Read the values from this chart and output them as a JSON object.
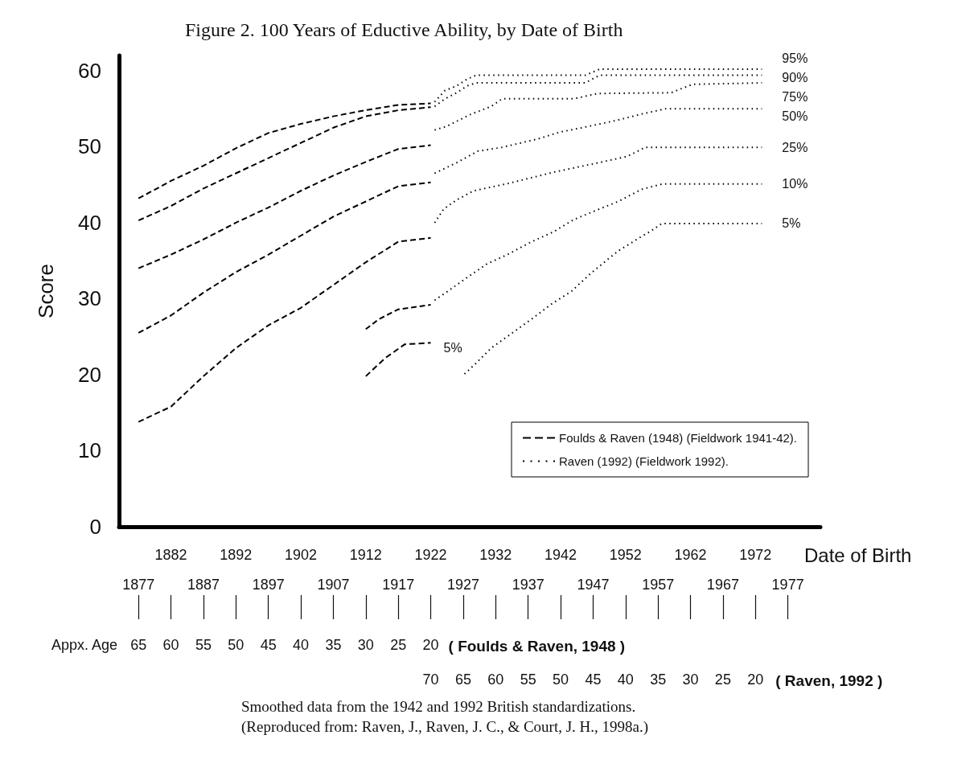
{
  "chart_data": {
    "type": "line",
    "title": "Figure 2. 100 Years of Eductive Ability, by Date of Birth",
    "xlabel": "Date of Birth",
    "ylabel": "Score",
    "xlim": [
      1874,
      1982
    ],
    "xticks": [
      1882,
      1892,
      1902,
      1912,
      1922,
      1932,
      1942,
      1952,
      1962,
      1972
    ],
    "x2lim": [
      1874,
      1982
    ],
    "x2ticks": [
      1877,
      1887,
      1897,
      1907,
      1917,
      1927,
      1937,
      1947,
      1957,
      1967,
      1977
    ],
    "ylim": [
      0,
      62
    ],
    "yticks": [
      0,
      10,
      20,
      30,
      40,
      50,
      60
    ],
    "legend": "bottom right",
    "marker": "none",
    "series": [
      {
        "name": "Foulds & Raven (1948) (Fieldwork 1941-42).",
        "color": "#000000",
        "line_style": "dashed",
        "x": [
          1877,
          1882,
          1887,
          1892,
          1897,
          1902,
          1907,
          1912,
          1917,
          1922
        ],
        "values": [
          43.2,
          45.5,
          47.5,
          49.8,
          51.8,
          53.0,
          54.0,
          54.8,
          55.5,
          55.7
        ]
      },
      {
        "color": "#000000",
        "line_style": "dashed",
        "x": [
          1877,
          1882,
          1887,
          1892,
          1897,
          1902,
          1907,
          1912,
          1917,
          1922
        ],
        "values": [
          40.3,
          42.2,
          44.5,
          46.5,
          48.5,
          50.5,
          52.5,
          54.0,
          54.8,
          55.2
        ]
      },
      {
        "color": "#000000",
        "line_style": "dashed",
        "x": [
          1877,
          1882,
          1887,
          1892,
          1897,
          1902,
          1907,
          1912,
          1917,
          1922
        ],
        "values": [
          34.0,
          35.8,
          37.8,
          40.0,
          42.0,
          44.2,
          46.2,
          48.0,
          49.7,
          50.2
        ]
      },
      {
        "color": "#000000",
        "line_style": "dashed",
        "x": [
          1877,
          1882,
          1887,
          1892,
          1897,
          1902,
          1907,
          1912,
          1917,
          1922
        ],
        "values": [
          25.5,
          27.8,
          30.8,
          33.5,
          35.8,
          38.3,
          40.8,
          42.8,
          44.8,
          45.3
        ]
      },
      {
        "color": "#000000",
        "line_style": "dashed",
        "x": [
          1877,
          1882,
          1887,
          1892,
          1897,
          1902,
          1907,
          1912,
          1917,
          1922
        ],
        "values": [
          13.8,
          15.8,
          19.8,
          23.5,
          26.5,
          28.8,
          31.8,
          34.8,
          37.5,
          38.0
        ]
      },
      {
        "color": "#000000",
        "line_style": "dashed",
        "x": [
          1912,
          1914,
          1917,
          1922
        ],
        "values": [
          26.0,
          27.3,
          28.6,
          29.2
        ]
      },
      {
        "color": "#000000",
        "line_style": "dashed",
        "x": [
          1912,
          1915,
          1918,
          1922
        ],
        "values": [
          19.8,
          22.2,
          24.0,
          24.2
        ]
      },
      {
        "name": "Raven (1992) (Fieldwork 1992).",
        "color": "#000000",
        "line_style": "dotted",
        "x": [
          1922.6,
          1924.2,
          1926,
          1927.6,
          1929,
          1945.8,
          1948,
          1973
        ],
        "values": [
          55.9,
          57.4,
          58.0,
          58.9,
          59.4,
          59.4,
          60.2,
          60.2
        ]
      },
      {
        "color": "#000000",
        "line_style": "dotted",
        "x": [
          1922.6,
          1924.2,
          1926,
          1927.6,
          1929,
          1945.8,
          1948,
          1973
        ],
        "values": [
          55.3,
          56.3,
          57.1,
          58.0,
          58.4,
          58.4,
          59.4,
          59.4
        ]
      },
      {
        "color": "#000000",
        "line_style": "dotted",
        "x": [
          1922.6,
          1924.5,
          1928,
          1931.3,
          1933,
          1944,
          1947.7,
          1959,
          1962.3,
          1973
        ],
        "values": [
          52.2,
          52.7,
          54.2,
          55.3,
          56.3,
          56.3,
          57.0,
          57.1,
          58.2,
          58.4
        ]
      },
      {
        "color": "#000000",
        "line_style": "dotted",
        "x": [
          1922.6,
          1926,
          1929.2,
          1932.9,
          1938.4,
          1941.8,
          1945.3,
          1950.8,
          1954.5,
          1958.2,
          1973
        ],
        "values": [
          46.5,
          47.9,
          49.4,
          49.9,
          51.0,
          51.9,
          52.5,
          53.5,
          54.3,
          55.0,
          55.0
        ]
      },
      {
        "color": "#000000",
        "line_style": "dotted",
        "x": [
          1922.6,
          1924,
          1926,
          1928.6,
          1934.1,
          1941.2,
          1946.8,
          1952.2,
          1955,
          1973
        ],
        "values": [
          40.0,
          41.8,
          43.0,
          44.2,
          45.2,
          46.7,
          47.7,
          48.7,
          49.9,
          49.9
        ]
      },
      {
        "color": "#000000",
        "line_style": "dotted",
        "x": [
          1922.6,
          1924.5,
          1927.6,
          1930.7,
          1933.8,
          1937.3,
          1940.9,
          1944,
          1947.4,
          1950.9,
          1952.7,
          1954.5,
          1957.7,
          1973
        ],
        "values": [
          29.8,
          30.9,
          32.8,
          34.6,
          35.8,
          37.4,
          38.8,
          40.4,
          41.6,
          42.8,
          43.6,
          44.4,
          45.1,
          45.1
        ]
      },
      {
        "color": "#000000",
        "line_style": "dotted",
        "x": [
          1927.2,
          1928.6,
          1931.3,
          1934.4,
          1937.5,
          1940.6,
          1943.7,
          1946.6,
          1949.3,
          1950.9,
          1952.6,
          1954.3,
          1955.9,
          1957.6,
          1973
        ],
        "values": [
          20.1,
          21.2,
          23.5,
          25.4,
          27.3,
          29.3,
          31.0,
          33.3,
          35.2,
          36.3,
          37.2,
          38.1,
          38.9,
          39.9,
          39.9
        ]
      }
    ],
    "annotations": [
      "95%",
      "90%",
      "75%",
      "50%",
      "25%",
      "10%",
      "5%",
      "5%",
      "Appx. Age",
      "65 60 55 50 45 40 35 30 25 20",
      "( Foulds & Raven, 1948 )",
      "70 65 60 55 50 45 40 35 30 25 20",
      "( Raven, 1992 )",
      "Smoothed data from the 1942 and 1992 British standardizations.",
      "(Reproduced from: Raven, J., Raven, J. C., & Court, J. H., 1998a.)"
    ]
  }
}
